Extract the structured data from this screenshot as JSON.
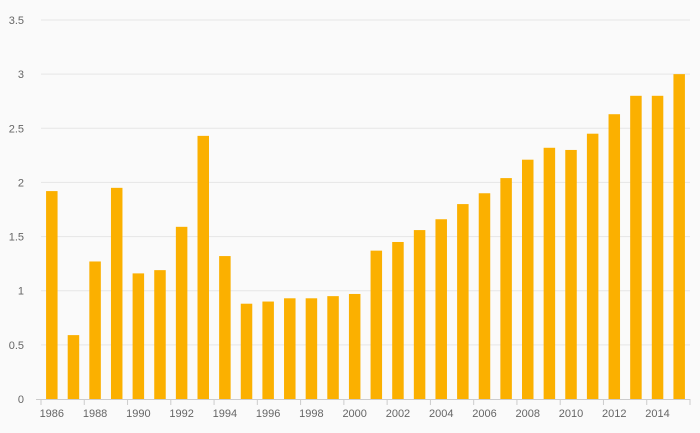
{
  "chart_data": {
    "type": "bar",
    "categories": [
      "1986",
      "1987",
      "1988",
      "1989",
      "1990",
      "1991",
      "1992",
      "1993",
      "1994",
      "1995",
      "1996",
      "1997",
      "1998",
      "1999",
      "2000",
      "2001",
      "2002",
      "2003",
      "2004",
      "2005",
      "2006",
      "2007",
      "2008",
      "2009",
      "2010",
      "2011",
      "2012",
      "2013",
      "2014",
      "2015"
    ],
    "x_tick_labels": [
      "1986",
      "1988",
      "1990",
      "1992",
      "1994",
      "1996",
      "1998",
      "2000",
      "2002",
      "2004",
      "2006",
      "2008",
      "2010",
      "2012",
      "2014"
    ],
    "values": [
      1.92,
      0.59,
      1.27,
      1.95,
      1.16,
      1.19,
      1.59,
      2.43,
      1.32,
      0.88,
      0.9,
      0.93,
      0.93,
      0.95,
      0.97,
      1.37,
      1.45,
      1.56,
      1.66,
      1.8,
      1.9,
      2.04,
      2.21,
      2.32,
      2.3,
      2.45,
      2.63,
      2.8,
      2.8,
      3.0
    ],
    "y_tick_labels": [
      "0",
      "0.5",
      "1",
      "1.5",
      "2",
      "2.5",
      "3",
      "3.5"
    ],
    "ylim": [
      0,
      3.5
    ],
    "grid": true,
    "colors": {
      "bar": "#fbb000",
      "grid": "#e6e6e6",
      "axis": "#cccccc",
      "tick_text": "#666666",
      "background": "#fafafa"
    }
  }
}
